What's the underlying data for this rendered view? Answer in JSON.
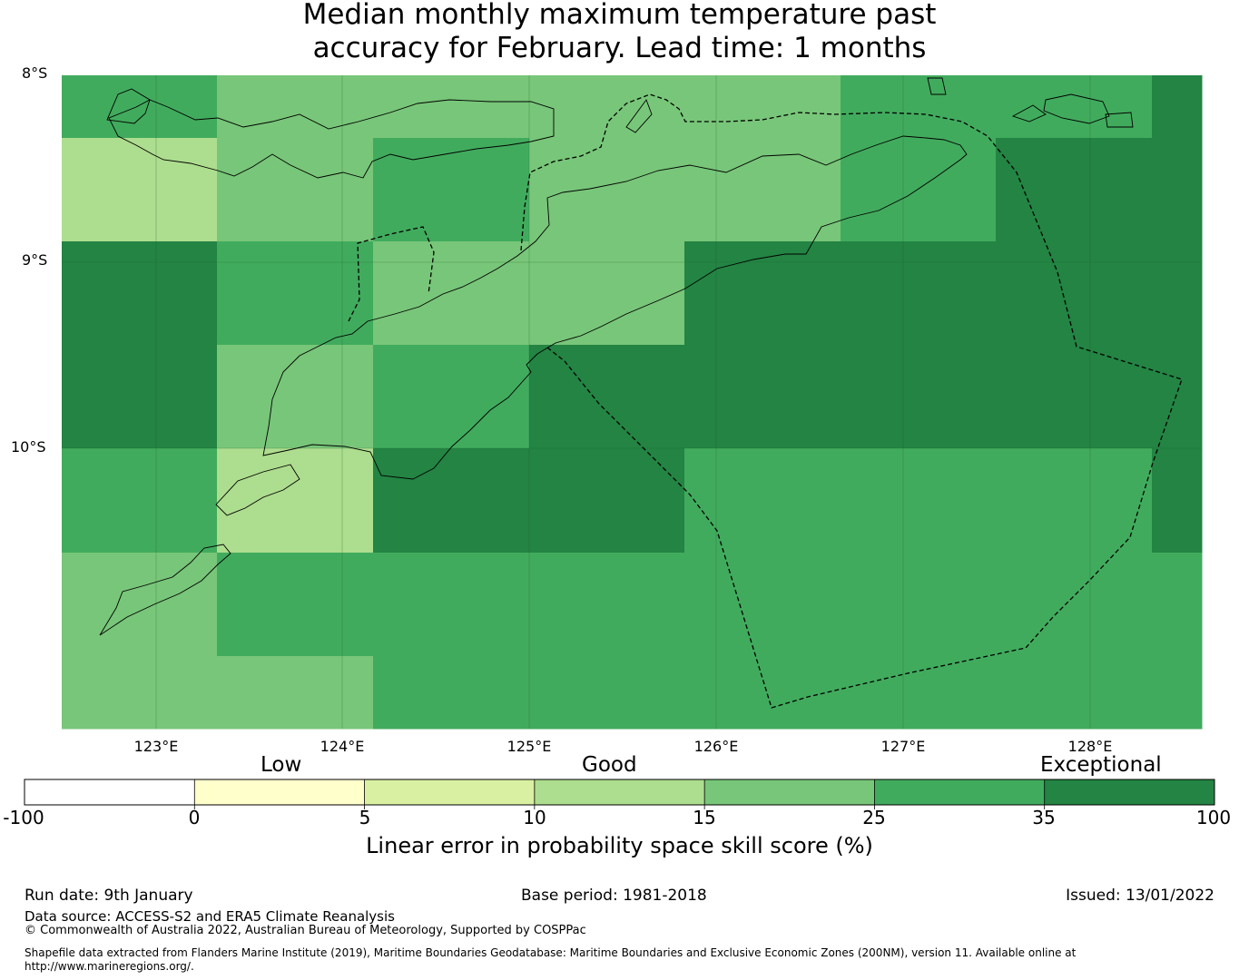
{
  "title_line1": "Median monthly maximum temperature past",
  "title_line2": "accuracy for February. Lead time: 1 months",
  "lat_labels": [
    "8°S",
    "9°S",
    "10°S"
  ],
  "lon_labels": [
    "123°E",
    "124°E",
    "125°E",
    "126°E",
    "127°E",
    "128°E"
  ],
  "colorbar": {
    "categories": [
      "Low",
      "Good",
      "Exceptional"
    ],
    "ticks": [
      "-100",
      "0",
      "5",
      "10",
      "15",
      "25",
      "35",
      "100"
    ],
    "colors": [
      "#ffffff",
      "#ffffcc",
      "#d9f0a3",
      "#addd8e",
      "#78c679",
      "#41ab5d",
      "#238443"
    ],
    "label": "Linear error in probability space skill score (%)"
  },
  "grid_colors": [
    [
      "#41ab5d",
      "#78c679",
      "#78c679",
      "#78c679",
      "#78c679",
      "#41ab5d",
      "#41ab5d",
      "#238443"
    ],
    [
      "#addd8e",
      "#78c679",
      "#41ab5d",
      "#78c679",
      "#78c679",
      "#41ab5d",
      "#238443",
      "#238443"
    ],
    [
      "#238443",
      "#41ab5d",
      "#78c679",
      "#78c679",
      "#238443",
      "#238443",
      "#238443",
      "#238443"
    ],
    [
      "#238443",
      "#78c679",
      "#41ab5d",
      "#238443",
      "#238443",
      "#238443",
      "#238443",
      "#238443"
    ],
    [
      "#41ab5d",
      "#addd8e",
      "#238443",
      "#238443",
      "#41ab5d",
      "#41ab5d",
      "#41ab5d",
      "#238443"
    ],
    [
      "#78c679",
      "#41ab5d",
      "#41ab5d",
      "#41ab5d",
      "#41ab5d",
      "#41ab5d",
      "#41ab5d",
      "#41ab5d"
    ],
    [
      "#78c679",
      "#78c679",
      "#41ab5d",
      "#41ab5d",
      "#41ab5d",
      "#41ab5d",
      "#41ab5d",
      "#41ab5d"
    ]
  ],
  "footer": {
    "run_date": "Run date: 9th January",
    "base_period": "Base period: 1981-2018",
    "issued": "Issued: 13/01/2022",
    "data_source": "Data source: ACCESS-S2 and ERA5 Climate Reanalysis",
    "copyright": "© Commonwealth of Australia 2022, Australian Bureau of Meteorology, Supported by COSPPac",
    "shapefile_1": "Shapefile data extracted from Flanders Marine Institute (2019), Maritime Boundaries Geodatabase: Maritime Boundaries and Exclusive Economic Zones (200NM), version 11. Available online at",
    "shapefile_2": "http://www.marineregions.org/."
  }
}
